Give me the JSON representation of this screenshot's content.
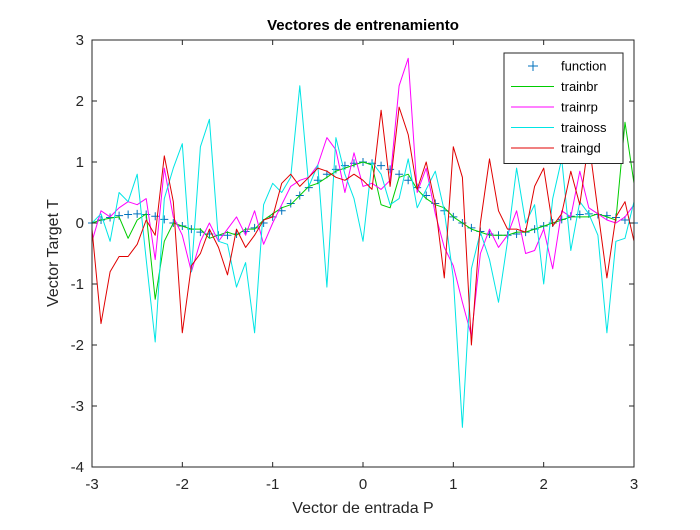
{
  "chart_data": {
    "type": "line",
    "title": "Vectores de entrenamiento",
    "xlabel": "Vector de entrada P",
    "ylabel": "Vector Target T",
    "xlim": [
      -3,
      3
    ],
    "ylim": [
      -4,
      3
    ],
    "xticks": [
      -3,
      -2,
      -1,
      0,
      1,
      2,
      3
    ],
    "yticks": [
      -4,
      -3,
      -2,
      -1,
      0,
      1,
      2,
      3
    ],
    "xtick_labels": [
      "-3",
      "-2",
      "-1",
      "0",
      "1",
      "2",
      "3"
    ],
    "ytick_labels": [
      "-4",
      "-3",
      "-2",
      "-1",
      "0",
      "1",
      "2",
      "3"
    ],
    "grid": false,
    "legend_position": "top-right",
    "x": [
      -3.0,
      -2.9,
      -2.8,
      -2.7,
      -2.6,
      -2.5,
      -2.4,
      -2.3,
      -2.2,
      -2.1,
      -2.0,
      -1.9,
      -1.8,
      -1.7,
      -1.6,
      -1.5,
      -1.4,
      -1.3,
      -1.2,
      -1.1,
      -1.0,
      -0.9,
      -0.8,
      -0.7,
      -0.6,
      -0.5,
      -0.4,
      -0.3,
      -0.2,
      -0.1,
      0.0,
      0.1,
      0.2,
      0.3,
      0.4,
      0.5,
      0.6,
      0.7,
      0.8,
      0.9,
      1.0,
      1.1,
      1.2,
      1.3,
      1.4,
      1.5,
      1.6,
      1.7,
      1.8,
      1.9,
      2.0,
      2.1,
      2.2,
      2.3,
      2.4,
      2.5,
      2.6,
      2.7,
      2.8,
      2.9,
      3.0
    ],
    "series": [
      {
        "name": "function",
        "style": "marker",
        "color": "#0072bd",
        "values": [
          0.0,
          0.05,
          0.09,
          0.12,
          0.14,
          0.15,
          0.14,
          0.11,
          0.06,
          0.0,
          -0.05,
          -0.1,
          -0.15,
          -0.18,
          -0.2,
          -0.2,
          -0.18,
          -0.14,
          -0.08,
          0.0,
          0.1,
          0.2,
          0.32,
          0.45,
          0.58,
          0.7,
          0.8,
          0.88,
          0.94,
          0.98,
          1.0,
          0.98,
          0.94,
          0.88,
          0.8,
          0.7,
          0.58,
          0.45,
          0.32,
          0.2,
          0.1,
          0.0,
          -0.08,
          -0.14,
          -0.18,
          -0.2,
          -0.2,
          -0.18,
          -0.15,
          -0.1,
          -0.05,
          0.0,
          0.06,
          0.11,
          0.14,
          0.15,
          0.14,
          0.12,
          0.09,
          0.05,
          0.0
        ]
      },
      {
        "name": "trainbr",
        "style": "line",
        "color": "#00cc00",
        "values": [
          0.0,
          0.05,
          0.08,
          0.1,
          -0.25,
          0.05,
          0.15,
          -1.25,
          -0.3,
          0.0,
          -0.05,
          -0.1,
          -0.1,
          -0.25,
          -0.2,
          -0.15,
          -0.2,
          -0.1,
          -0.1,
          0.05,
          0.15,
          0.25,
          0.3,
          0.45,
          0.6,
          0.65,
          0.75,
          0.85,
          0.9,
          0.95,
          1.0,
          0.95,
          0.3,
          0.25,
          0.75,
          0.8,
          0.55,
          0.4,
          0.3,
          0.25,
          0.1,
          0.0,
          -0.1,
          -0.15,
          -0.2,
          -0.2,
          -0.2,
          -0.15,
          -0.15,
          -0.1,
          -0.05,
          0.0,
          0.05,
          0.1,
          0.1,
          0.1,
          0.15,
          0.1,
          0.05,
          1.65,
          0.65
        ]
      },
      {
        "name": "trainrp",
        "style": "line",
        "color": "#ff00ff",
        "values": [
          -0.3,
          0.2,
          0.1,
          0.25,
          0.35,
          0.3,
          0.4,
          -0.6,
          0.9,
          0.1,
          -0.2,
          -0.8,
          -0.3,
          0.0,
          -0.3,
          -0.1,
          0.1,
          -0.2,
          0.2,
          -0.35,
          0.0,
          0.3,
          0.6,
          0.7,
          0.75,
          0.95,
          1.4,
          1.2,
          0.5,
          1.15,
          0.6,
          0.65,
          0.55,
          0.7,
          2.25,
          2.7,
          0.5,
          0.9,
          0.15,
          -0.4,
          -0.7,
          -1.3,
          -1.85,
          -0.5,
          -0.1,
          -0.4,
          -0.2,
          0.2,
          -0.5,
          -0.45,
          -0.1,
          -0.75,
          0.2,
          0.1,
          0.85,
          0.25,
          0.15,
          0.05,
          0.0,
          0.1,
          0.3
        ]
      },
      {
        "name": "trainoss",
        "style": "line",
        "color": "#00e5e5",
        "values": [
          0.0,
          0.15,
          -0.3,
          0.5,
          0.35,
          0.8,
          -0.6,
          -1.95,
          0.4,
          0.9,
          1.3,
          -0.8,
          1.25,
          1.7,
          -0.3,
          -0.35,
          -1.05,
          -0.65,
          -1.8,
          0.3,
          0.65,
          0.5,
          0.75,
          2.25,
          0.6,
          0.95,
          -1.05,
          1.4,
          0.8,
          0.4,
          -0.3,
          1.0,
          0.8,
          0.3,
          0.4,
          1.05,
          0.25,
          0.55,
          0.85,
          0.2,
          -0.9,
          -3.35,
          -0.75,
          -0.15,
          -0.6,
          -1.3,
          -0.3,
          0.9,
          0.0,
          0.3,
          -1.0,
          0.4,
          1.05,
          -0.45,
          0.35,
          0.15,
          -0.2,
          -1.8,
          -0.3,
          -0.25,
          0.35
        ]
      },
      {
        "name": "traingd",
        "style": "line",
        "color": "#e00000",
        "values": [
          -0.1,
          -1.65,
          -0.8,
          -0.55,
          -0.55,
          -0.35,
          0.05,
          -0.2,
          1.1,
          0.35,
          -1.8,
          -0.7,
          -0.5,
          -0.1,
          -0.4,
          -0.85,
          -0.1,
          -0.4,
          -0.2,
          0.05,
          0.1,
          0.65,
          0.8,
          0.6,
          0.75,
          0.9,
          0.85,
          0.75,
          0.7,
          0.8,
          0.7,
          0.55,
          1.85,
          0.6,
          1.9,
          1.45,
          0.55,
          1.0,
          0.3,
          -0.9,
          1.25,
          0.75,
          -2.0,
          0.0,
          1.05,
          0.2,
          -0.1,
          -0.1,
          -0.15,
          0.6,
          0.9,
          -0.05,
          0.15,
          0.85,
          0.3,
          1.35,
          0.2,
          -0.9,
          0.1,
          0.35,
          -0.3
        ]
      }
    ]
  }
}
